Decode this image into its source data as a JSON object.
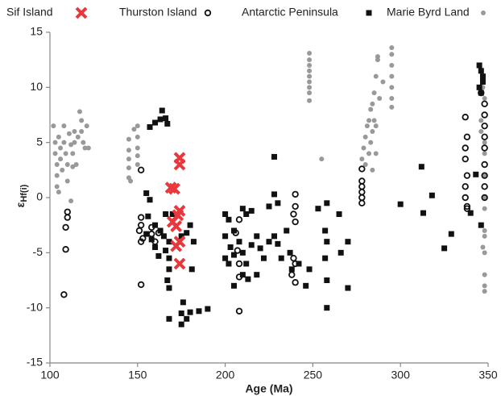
{
  "chart_data": {
    "type": "scatter",
    "xlabel": "Age (Ma)",
    "ylabel": "ε",
    "ylabel_subscript": "Hf(i)",
    "xlim": [
      100,
      350
    ],
    "ylim": [
      -15,
      15
    ],
    "xticks": [
      100,
      150,
      200,
      250,
      300,
      350
    ],
    "yticks": [
      -15,
      -10,
      -5,
      0,
      5,
      10,
      15
    ],
    "grid": false,
    "legend": "top",
    "series": [
      {
        "name": "Sif Island",
        "color": "#e8383d",
        "marker": "x",
        "x": [
          174,
          174,
          169,
          171,
          174,
          173,
          170,
          172,
          174,
          172,
          174
        ],
        "values": [
          3.6,
          3,
          0.9,
          0.8,
          -1.2,
          -1.6,
          -2.2,
          -2.6,
          -4,
          -4.4,
          -6
        ]
      },
      {
        "name": "Thurston Island",
        "color": "#111111",
        "marker": "circle-open",
        "x": [
          110,
          110,
          109,
          109,
          108,
          152,
          152,
          152,
          151,
          152,
          153,
          152,
          158,
          158,
          160,
          162,
          208,
          206,
          207,
          208,
          208,
          208,
          240,
          240,
          239,
          240,
          239,
          240,
          238,
          240,
          278,
          278,
          278,
          278,
          278,
          278,
          337,
          338,
          337,
          337,
          338,
          337,
          337,
          338,
          338,
          346,
          348,
          348,
          348,
          348,
          348,
          348,
          348,
          348,
          348
        ],
        "values": [
          -1.3,
          -1.8,
          -2.7,
          -4.7,
          -8.8,
          2.5,
          -1.8,
          -2.5,
          -3,
          -4,
          -3.7,
          -7.9,
          -2.7,
          -3.3,
          -4,
          -3.2,
          -2,
          -3.2,
          -4.8,
          -6,
          -7.2,
          -10.3,
          0.3,
          -0.8,
          -1.5,
          -2.2,
          -5.5,
          -6,
          -7,
          -7.7,
          2.6,
          1.5,
          1,
          0.5,
          0,
          -0.5,
          7.3,
          5.5,
          4.5,
          3.5,
          2,
          1,
          0,
          -1,
          -0.8,
          9.5,
          8.5,
          7.5,
          6.5,
          5.5,
          4.5,
          3,
          2,
          1,
          0
        ]
      },
      {
        "name": "Antarctic Peninsula",
        "color": "#111111",
        "marker": "square",
        "x": [
          157,
          160,
          164,
          166,
          163,
          167,
          155,
          157,
          156,
          160,
          163,
          165,
          168,
          160,
          162,
          166,
          168,
          168,
          167,
          168,
          170,
          166,
          158,
          155,
          175,
          178,
          180,
          182,
          181,
          168,
          175,
          175,
          176,
          178,
          180,
          185,
          190,
          200,
          202,
          205,
          210,
          212,
          215,
          200,
          203,
          205,
          208,
          210,
          212,
          215,
          218,
          220,
          222,
          225,
          228,
          230,
          232,
          210,
          213,
          218,
          200,
          202,
          205,
          228,
          228,
          230,
          225,
          235,
          237,
          238,
          242,
          246,
          248,
          253,
          258,
          257,
          258,
          257,
          258,
          258,
          266,
          270,
          270,
          265,
          300,
          312,
          313,
          318,
          325,
          329,
          340,
          343,
          346,
          345,
          346,
          347,
          347,
          345,
          346
        ],
        "values": [
          6.4,
          6.8,
          7.9,
          7.2,
          7.1,
          6.7,
          0.4,
          -0.2,
          -1.7,
          -2.5,
          -3,
          -3.5,
          -4,
          -4.5,
          -5.3,
          -4.8,
          -5.5,
          -6.5,
          -7.5,
          -8.2,
          -1.5,
          -1.5,
          -3.8,
          -3.3,
          -3.5,
          -3.2,
          -2.5,
          -4,
          -6.5,
          -11,
          -11.5,
          -10.5,
          -9.5,
          -11,
          -10.4,
          -10.3,
          -10.1,
          -1.5,
          -2,
          -3,
          -1,
          -1.5,
          -1.2,
          -3.5,
          -4.5,
          -5.2,
          -4,
          -5,
          -6,
          -4.3,
          -3.5,
          -4.6,
          -5.5,
          -4,
          -3.5,
          -4.2,
          -5.5,
          -7,
          -7.4,
          -7,
          -5.5,
          -6,
          -8,
          3.7,
          0.3,
          -0.5,
          -0.8,
          -3,
          -5,
          -6.5,
          -6,
          -8,
          -6.5,
          -1,
          -0.5,
          -3,
          -4,
          -5.5,
          -7.5,
          -10,
          -5,
          -4,
          -8.2,
          -1.5,
          -0.6,
          2.8,
          -1.4,
          0.2,
          -4.6,
          -3.3,
          -1.4,
          2.1,
          -2.5,
          12,
          11.5,
          11,
          10.5,
          10,
          9.5
        ]
      },
      {
        "name": "Marie Byrd Land",
        "color": "#999999",
        "marker": "circle",
        "x": [
          102,
          103,
          103,
          104,
          104,
          104,
          105,
          105,
          106,
          106,
          107,
          108,
          108,
          109,
          110,
          110,
          111,
          112,
          113,
          114,
          114,
          115,
          116,
          117,
          118,
          118,
          119,
          120,
          121,
          122,
          113,
          112,
          145,
          145,
          145,
          145,
          145,
          146,
          148,
          150,
          150,
          150,
          150,
          150,
          248,
          248,
          248,
          248,
          248,
          248,
          248,
          248,
          248,
          255,
          278,
          279,
          280,
          281,
          282,
          283,
          284,
          285,
          286,
          287,
          287,
          283,
          284,
          285,
          280,
          282,
          286,
          288,
          284,
          286,
          295,
          295,
          295,
          295,
          295,
          295,
          295,
          290,
          346,
          346,
          348,
          348,
          348,
          348,
          348,
          348,
          348,
          348,
          348,
          348,
          347,
          348,
          347,
          347,
          348
        ],
        "values": [
          6.5,
          5,
          4,
          3,
          2,
          1,
          0.5,
          5.5,
          4.5,
          3.5,
          2.5,
          6.5,
          5,
          4,
          3,
          1.5,
          5.8,
          4.8,
          4,
          6,
          5,
          3,
          5.5,
          7.8,
          7,
          6,
          5,
          4.5,
          6.5,
          4.5,
          2.8,
          -0.3,
          5.3,
          4.3,
          3.5,
          2.7,
          1.8,
          1.5,
          6.2,
          6.5,
          5.5,
          4.5,
          3.8,
          3,
          13.1,
          12.5,
          12,
          11.5,
          11,
          10.5,
          10,
          9.5,
          8.8,
          3.5,
          3.5,
          4.5,
          5.5,
          6.5,
          7,
          8,
          8.5,
          9.5,
          11,
          12.5,
          12.8,
          5,
          6,
          7,
          3,
          4,
          6.5,
          9,
          2.5,
          4,
          13.6,
          13,
          12,
          11,
          10,
          9,
          8.2,
          10.5,
          7,
          6,
          5,
          4,
          2,
          0,
          -1,
          -3,
          -5,
          -7,
          -8,
          -8.5,
          -4.5,
          -3.5,
          10.8,
          10,
          9
        ]
      }
    ]
  }
}
